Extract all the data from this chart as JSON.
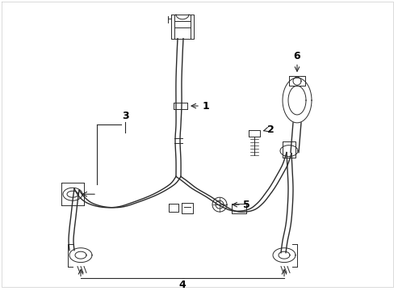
{
  "background_color": "#ffffff",
  "line_color": "#2a2a2a",
  "label_color": "#000000",
  "fig_width": 4.89,
  "fig_height": 3.6,
  "dpi": 100,
  "border_color": "#cccccc"
}
